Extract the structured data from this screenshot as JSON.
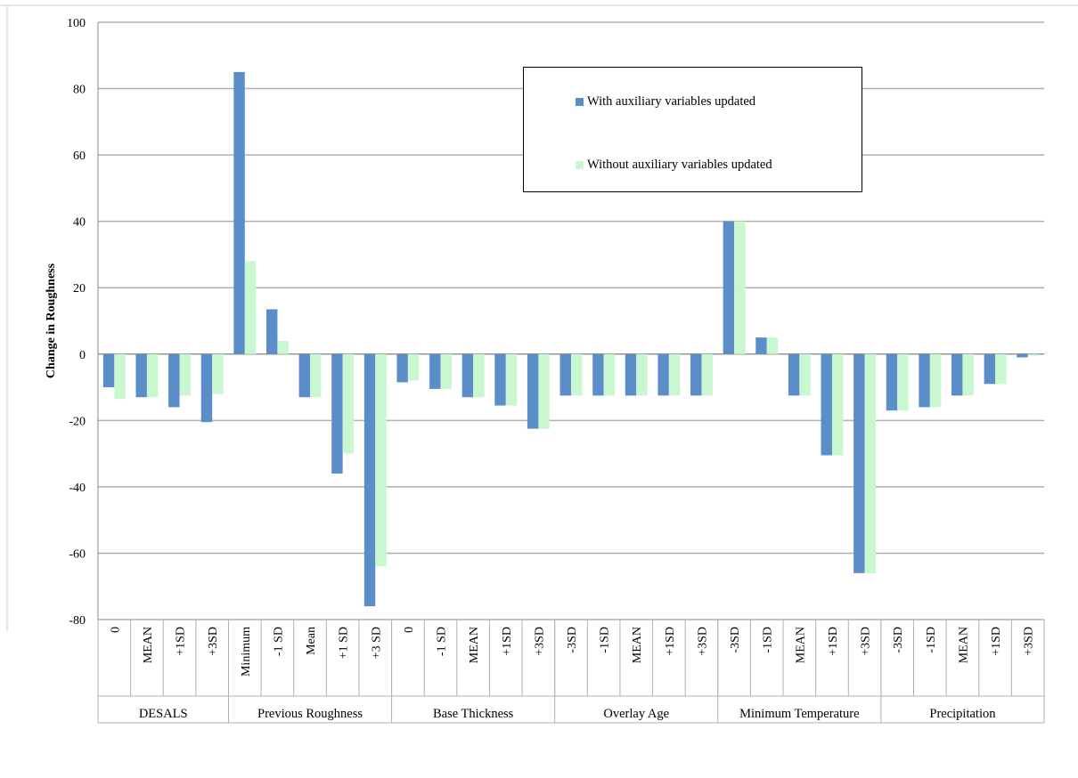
{
  "chart_data": {
    "type": "bar",
    "ylabel": "Change in Roughness",
    "xlabel": "",
    "ylim": [
      -80,
      100
    ],
    "yticks": [
      100,
      80,
      60,
      40,
      20,
      0,
      -20,
      -40,
      -60,
      -80
    ],
    "grid": true,
    "legend_position": "top-right",
    "groups": [
      {
        "name": "DESALS",
        "categories": [
          "0",
          "MEAN",
          "+1SD",
          "+3SD"
        ]
      },
      {
        "name": "Previous Roughness",
        "categories": [
          "Minimum",
          "-1 SD",
          "Mean",
          "+1 SD",
          "+3 SD"
        ]
      },
      {
        "name": "Base Thickness",
        "categories": [
          "0",
          "-1 SD",
          "MEAN",
          "+1SD",
          "+3SD"
        ]
      },
      {
        "name": "Overlay Age",
        "categories": [
          "-3SD",
          "-1SD",
          "MEAN",
          "+1SD",
          "+3SD"
        ]
      },
      {
        "name": "Minimum Temperature",
        "categories": [
          "-3SD",
          "-1SD",
          "MEAN",
          "+1SD",
          "+3SD"
        ]
      },
      {
        "name": "Precipitation",
        "categories": [
          "-3SD",
          "-1SD",
          "MEAN",
          "+1SD",
          "+3SD"
        ]
      }
    ],
    "series": [
      {
        "name": "With auxiliary variables updated",
        "color": "#5b8ec9",
        "values": [
          -10,
          -13,
          -16,
          -20.5,
          85,
          13.5,
          -13,
          -36,
          -76,
          -8.5,
          -10.5,
          -13,
          -15.5,
          -22.5,
          -12.5,
          -12.5,
          -12.5,
          -12.5,
          -12.5,
          40,
          5,
          -12.5,
          -30.5,
          -66,
          -17,
          -16,
          -12.5,
          -9,
          -1
        ]
      },
      {
        "name": "Without auxiliary variables updated",
        "color": "#c9f7cf",
        "values": [
          -13.5,
          -13,
          -12.5,
          -12,
          28,
          4,
          -13,
          -30,
          -64,
          -8,
          -10.5,
          -13,
          -15.5,
          -22.5,
          -12.5,
          -12.5,
          -12.5,
          -12.5,
          -12.5,
          40,
          5,
          -12.5,
          -30.5,
          -66,
          -17,
          -16,
          -12.5,
          -9,
          -0.5
        ]
      }
    ]
  }
}
